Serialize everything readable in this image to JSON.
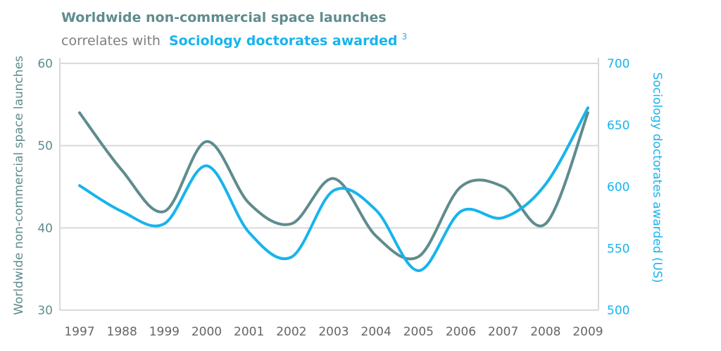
{
  "colors": {
    "left_series": "#5f8c8d",
    "right_series": "#17b4ec",
    "subtitle_text": "#808080",
    "grid": "#d9d9d9",
    "axis_line": "#d9d9d9"
  },
  "title": {
    "line1": "Worldwide non-commercial space launches",
    "line2_prefix": "correlates with",
    "line2_highlight": "Sociology doctorates awarded",
    "footnote": "3"
  },
  "chart_data": {
    "type": "line",
    "x": [
      "1997",
      "1988",
      "1999",
      "2000",
      "2001",
      "2002",
      "2003",
      "2004",
      "2005",
      "2006",
      "2007",
      "2008",
      "2009"
    ],
    "series": [
      {
        "name": "Worldwide non-commercial space launches",
        "axis": "left",
        "values": [
          54,
          47,
          42,
          50.5,
          43,
          40.5,
          46,
          39,
          36.5,
          45,
          45,
          40.5,
          54
        ]
      },
      {
        "name": "Sociology doctorates awarded",
        "axis": "right",
        "values": [
          601,
          580,
          570,
          617,
          563,
          543,
          597,
          581,
          532,
          580,
          575,
          602,
          664
        ]
      }
    ],
    "ylabel_left": "Worldwide non-commercial space launches",
    "ylabel_right": "Sociology doctorates awarded (US)",
    "ylim_left": [
      30,
      60
    ],
    "yticks_left": [
      "30",
      "40",
      "50",
      "60"
    ],
    "ylim_right": [
      500,
      700
    ],
    "yticks_right": [
      "500",
      "550",
      "600",
      "650",
      "700"
    ],
    "grid": "horizontal"
  }
}
